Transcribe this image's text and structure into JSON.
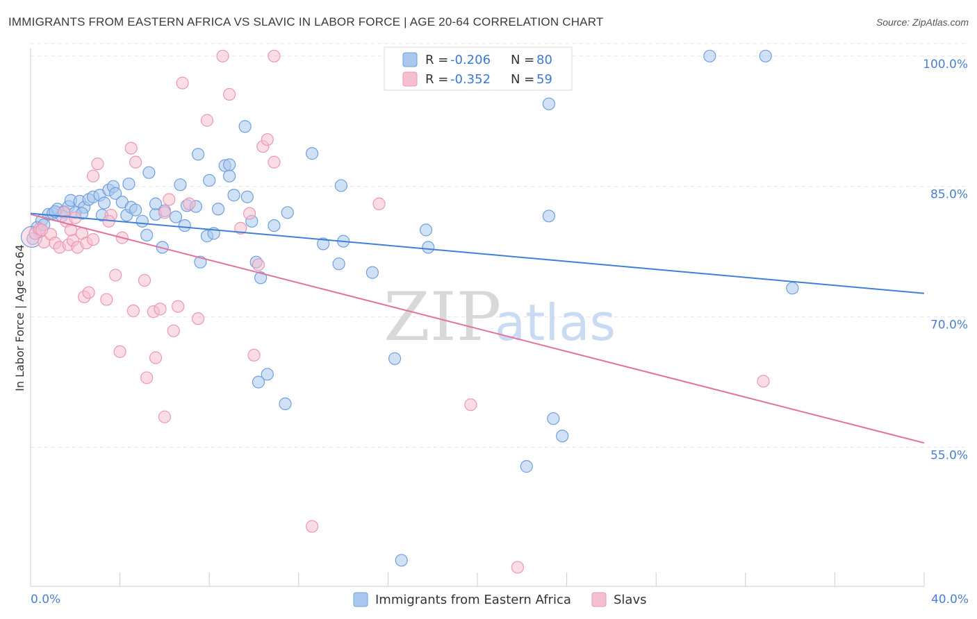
{
  "title": "IMMIGRANTS FROM EASTERN AFRICA VS SLAVIC IN LABOR FORCE | AGE 20-64 CORRELATION CHART",
  "source": "Source: ZipAtlas.com",
  "watermark": {
    "zip": "ZIP",
    "atlas": "atlas"
  },
  "colors": {
    "blue_fill": "#aac8ee",
    "blue_stroke": "#6f9fdc",
    "blue_line": "#3f7fd6",
    "pink_fill": "#f6bfd0",
    "pink_stroke": "#eb97b2",
    "pink_line": "#e3719c",
    "tick_text": "#4a7fd0",
    "grid": "#e4e4e4"
  },
  "legend": {
    "rows": [
      {
        "r_label": "R =",
        "r_value": "-0.206",
        "n_label": "N =",
        "n_value": "80"
      },
      {
        "r_label": "R =",
        "r_value": "-0.352",
        "n_label": "N =",
        "n_value": "59"
      }
    ]
  },
  "bottom_legend": [
    "Immigrants from Eastern Africa",
    "Slavs"
  ],
  "chart_data": {
    "type": "scatter",
    "title": "IMMIGRANTS FROM EASTERN AFRICA VS SLAVIC IN LABOR FORCE | AGE 20-64 CORRELATION CHART",
    "xlabel": "",
    "ylabel": "In Labor Force | Age 20-64",
    "xlim": [
      0,
      40
    ],
    "ylim": [
      39,
      101.5
    ],
    "x_tick_labels": [
      "0.0%",
      "40.0%"
    ],
    "y_ticks": [
      55,
      70,
      85,
      100
    ],
    "y_tick_labels": [
      "55.0%",
      "70.0%",
      "85.0%",
      "100.0%"
    ],
    "grid": true,
    "legend_position": "top-center",
    "series": [
      {
        "name": "Immigrants from Eastern Africa",
        "R": -0.206,
        "N": 80,
        "trend": {
          "x": [
            0,
            40
          ],
          "y": [
            81.9,
            72.7
          ]
        },
        "points": [
          [
            0.1,
            79.0
          ],
          [
            0.3,
            80.3
          ],
          [
            0.4,
            79.8
          ],
          [
            0.5,
            81.1
          ],
          [
            0.6,
            80.6
          ],
          [
            0.8,
            81.8
          ],
          [
            1.0,
            81.9
          ],
          [
            1.2,
            82.4
          ],
          [
            1.4,
            81.6
          ],
          [
            1.5,
            82.1
          ],
          [
            1.7,
            82.7
          ],
          [
            1.8,
            83.4
          ],
          [
            2.0,
            82.0
          ],
          [
            2.2,
            83.3
          ],
          [
            2.4,
            82.6
          ],
          [
            2.6,
            83.5
          ],
          [
            2.8,
            83.8
          ],
          [
            3.1,
            84.0
          ],
          [
            3.3,
            83.1
          ],
          [
            3.5,
            84.6
          ],
          [
            3.7,
            85.0
          ],
          [
            3.8,
            84.2
          ],
          [
            4.4,
            85.3
          ],
          [
            4.3,
            81.7
          ],
          [
            4.1,
            83.2
          ],
          [
            4.5,
            82.6
          ],
          [
            4.7,
            82.3
          ],
          [
            5.3,
            86.6
          ],
          [
            5.2,
            79.4
          ],
          [
            5.6,
            81.8
          ],
          [
            5.9,
            78.0
          ],
          [
            5.6,
            83.0
          ],
          [
            6.0,
            82.2
          ],
          [
            6.7,
            85.2
          ],
          [
            6.9,
            80.5
          ],
          [
            7.0,
            82.8
          ],
          [
            7.4,
            82.7
          ],
          [
            7.6,
            76.3
          ],
          [
            7.5,
            88.7
          ],
          [
            7.9,
            79.3
          ],
          [
            8.0,
            85.7
          ],
          [
            8.2,
            79.6
          ],
          [
            8.4,
            82.4
          ],
          [
            8.7,
            87.4
          ],
          [
            8.9,
            86.2
          ],
          [
            8.9,
            87.5
          ],
          [
            9.1,
            84.0
          ],
          [
            9.6,
            91.9
          ],
          [
            9.7,
            83.8
          ],
          [
            9.9,
            81.0
          ],
          [
            10.1,
            76.3
          ],
          [
            10.3,
            74.5
          ],
          [
            10.9,
            80.5
          ],
          [
            11.5,
            82.0
          ],
          [
            12.6,
            88.8
          ],
          [
            13.1,
            78.4
          ],
          [
            13.8,
            76.1
          ],
          [
            14.0,
            78.7
          ],
          [
            13.9,
            85.1
          ],
          [
            15.3,
            75.1
          ],
          [
            16.3,
            65.2
          ],
          [
            16.6,
            42.0
          ],
          [
            17.7,
            80.0
          ],
          [
            17.8,
            78.0
          ],
          [
            22.2,
            52.8
          ],
          [
            23.2,
            94.5
          ],
          [
            23.4,
            58.3
          ],
          [
            23.2,
            81.6
          ],
          [
            23.8,
            56.3
          ],
          [
            10.6,
            63.4
          ],
          [
            11.4,
            60.0
          ],
          [
            10.2,
            62.5
          ],
          [
            30.4,
            100.0
          ],
          [
            32.9,
            100.0
          ],
          [
            34.1,
            73.3
          ],
          [
            2.3,
            81.9
          ],
          [
            3.2,
            81.7
          ],
          [
            1.1,
            82.1
          ],
          [
            5.0,
            81.0
          ],
          [
            6.5,
            81.5
          ]
        ]
      },
      {
        "name": "Slavs",
        "R": -0.352,
        "N": 59,
        "trend": {
          "x": [
            0,
            40
          ],
          "y": [
            81.8,
            55.5
          ]
        },
        "points": [
          [
            0.2,
            79.6
          ],
          [
            0.4,
            80.1
          ],
          [
            0.6,
            78.6
          ],
          [
            0.9,
            79.5
          ],
          [
            1.1,
            78.5
          ],
          [
            1.3,
            78.0
          ],
          [
            1.5,
            82.0
          ],
          [
            1.6,
            81.0
          ],
          [
            1.7,
            78.3
          ],
          [
            1.9,
            78.8
          ],
          [
            2.0,
            81.4
          ],
          [
            2.1,
            78.0
          ],
          [
            2.3,
            79.6
          ],
          [
            2.5,
            78.5
          ],
          [
            2.8,
            78.9
          ],
          [
            2.4,
            72.3
          ],
          [
            2.6,
            72.8
          ],
          [
            2.8,
            86.2
          ],
          [
            3.0,
            87.6
          ],
          [
            3.4,
            72.0
          ],
          [
            3.6,
            81.7
          ],
          [
            3.8,
            74.8
          ],
          [
            4.1,
            79.1
          ],
          [
            4.0,
            66.0
          ],
          [
            4.5,
            89.4
          ],
          [
            4.7,
            87.8
          ],
          [
            4.6,
            70.7
          ],
          [
            5.1,
            74.2
          ],
          [
            5.2,
            63.0
          ],
          [
            5.5,
            70.6
          ],
          [
            5.6,
            65.3
          ],
          [
            5.8,
            70.9
          ],
          [
            6.0,
            58.5
          ],
          [
            6.2,
            83.5
          ],
          [
            6.4,
            68.4
          ],
          [
            6.6,
            71.2
          ],
          [
            6.8,
            96.9
          ],
          [
            7.1,
            83.0
          ],
          [
            7.5,
            69.8
          ],
          [
            7.9,
            92.6
          ],
          [
            8.6,
            100.0
          ],
          [
            8.9,
            95.6
          ],
          [
            9.4,
            80.2
          ],
          [
            9.8,
            81.9
          ],
          [
            10.0,
            65.6
          ],
          [
            10.2,
            76.0
          ],
          [
            10.4,
            89.6
          ],
          [
            10.6,
            90.4
          ],
          [
            10.9,
            87.8
          ],
          [
            10.9,
            100.0
          ],
          [
            12.6,
            45.9
          ],
          [
            15.6,
            83.0
          ],
          [
            19.7,
            59.9
          ],
          [
            21.8,
            41.2
          ],
          [
            32.8,
            62.6
          ],
          [
            0.5,
            80.0
          ],
          [
            3.5,
            81.0
          ],
          [
            1.8,
            80.0
          ],
          [
            6.0,
            82.0
          ]
        ]
      }
    ]
  }
}
